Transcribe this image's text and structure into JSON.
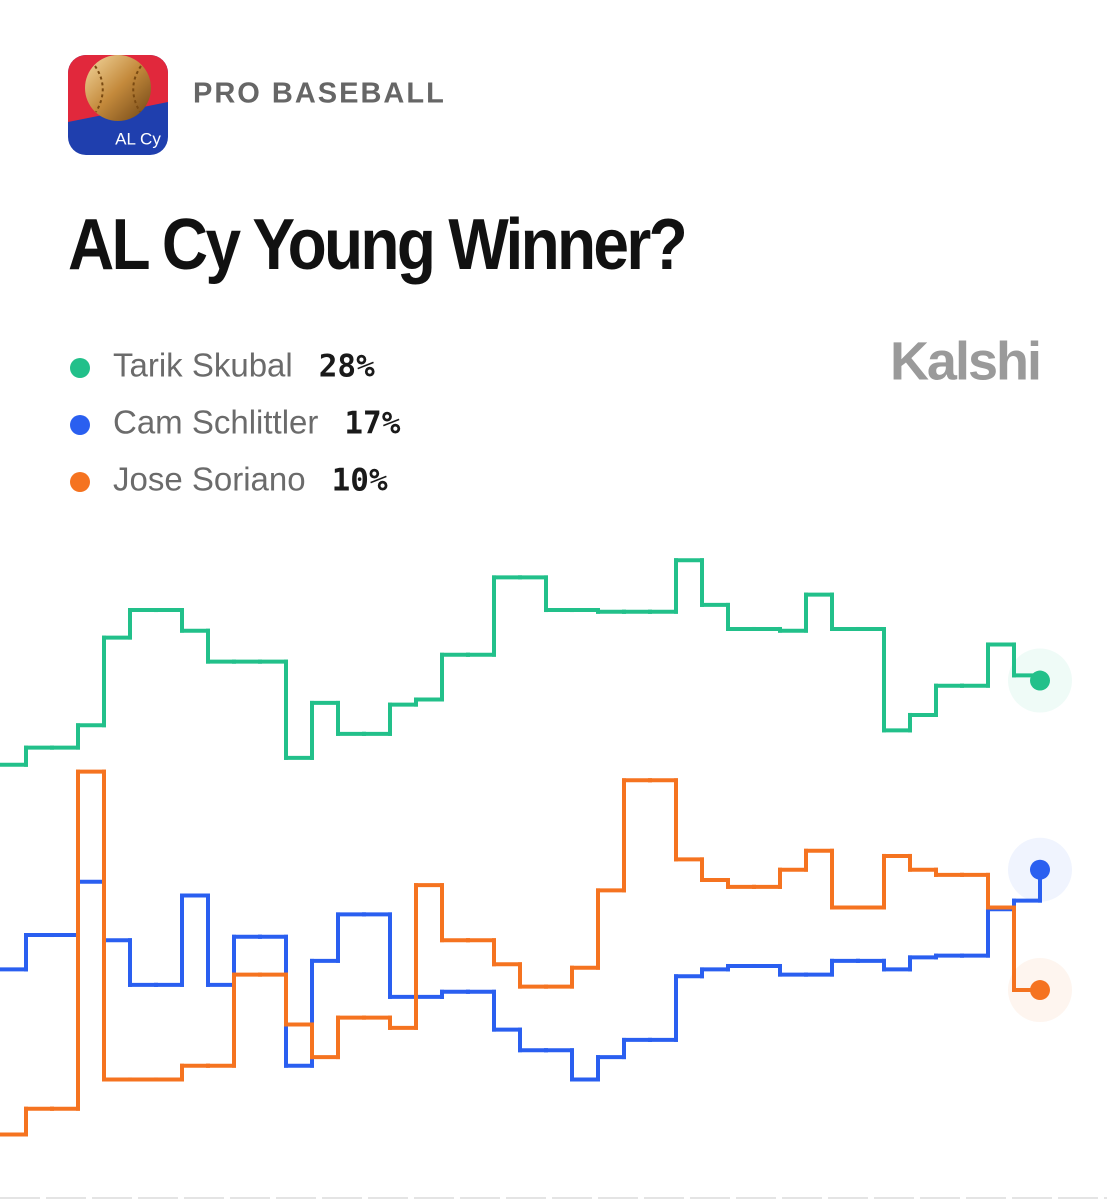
{
  "header": {
    "category": "PRO BASEBALL",
    "icon_text": "AL Cy"
  },
  "brand": "Kalshi",
  "chart_data": {
    "type": "step-line",
    "title": "AL Cy Young Winner?",
    "ylim": [
      0,
      36
    ],
    "series": [
      {
        "name": "Tarik Skubal",
        "value_label": "28%",
        "color": "#22c08a",
        "values": [
          23.1,
          24.1,
          24.1,
          25.4,
          30.5,
          32.1,
          32.1,
          30.9,
          29.1,
          29.1,
          29.1,
          23.5,
          26.7,
          24.9,
          24.9,
          26.6,
          26.9,
          29.5,
          29.5,
          34.0,
          34.0,
          32.1,
          32.1,
          32.0,
          32.0,
          32.0,
          35.0,
          32.4,
          31.0,
          31.0,
          30.9,
          33.0,
          31.0,
          31.0,
          25.1,
          26.0,
          27.7,
          27.7,
          30.1,
          28.3,
          28
        ]
      },
      {
        "name": "Cam Schlittler",
        "value_label": "17%",
        "color": "#2a5ff0",
        "values": [
          11.2,
          13.2,
          13.2,
          16.3,
          12.9,
          10.3,
          10.3,
          15.5,
          10.3,
          13.1,
          13.1,
          5.6,
          11.7,
          14.4,
          14.4,
          9.6,
          9.6,
          9.9,
          9.9,
          7.7,
          6.5,
          6.5,
          4.8,
          6.1,
          7.1,
          7.1,
          10.8,
          11.2,
          11.4,
          11.4,
          10.9,
          10.9,
          11.7,
          11.7,
          11.2,
          11.9,
          12.0,
          12.0,
          14.7,
          15.2,
          17
        ]
      },
      {
        "name": "Jose Soriano",
        "value_label": "10%",
        "color": "#f57320",
        "values": [
          1.6,
          3.1,
          3.1,
          22.7,
          4.8,
          4.8,
          4.8,
          5.6,
          5.6,
          10.9,
          10.9,
          8.0,
          6.1,
          8.4,
          8.4,
          7.8,
          16.1,
          12.9,
          12.9,
          11.5,
          10.2,
          10.2,
          11.3,
          15.8,
          22.2,
          22.2,
          17.6,
          16.4,
          16.0,
          16.0,
          17.0,
          18.1,
          14.8,
          14.8,
          17.8,
          17.0,
          16.7,
          16.7,
          14.8,
          10.0,
          10
        ]
      }
    ]
  }
}
